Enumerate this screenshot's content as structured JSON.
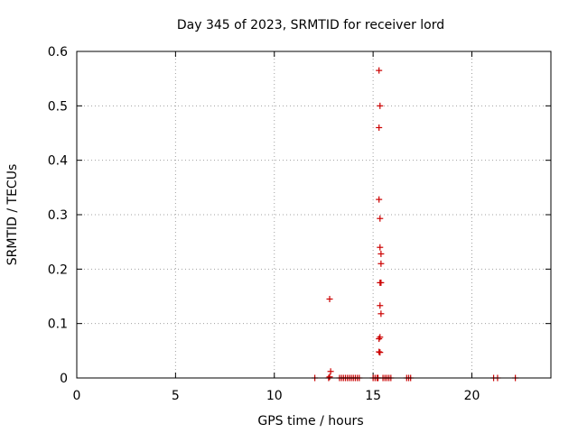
{
  "chart_data": {
    "type": "scatter",
    "title": "Day 345 of 2023, SRMTID for receiver lord",
    "xlabel": "GPS time / hours",
    "ylabel": "SRMTID / TECUs",
    "xlim": [
      0,
      24
    ],
    "ylim": [
      0,
      0.6
    ],
    "xticks": [
      0,
      5,
      10,
      15,
      20
    ],
    "xtick_labels": [
      "0",
      "5",
      "10",
      "15",
      "20"
    ],
    "yticks": [
      0,
      0.1,
      0.2,
      0.3,
      0.4,
      0.5,
      0.6
    ],
    "ytick_labels": [
      "0",
      "0.1",
      "0.2",
      "0.3",
      "0.4",
      "0.5",
      "0.6"
    ],
    "grid": true,
    "marker": "+",
    "color": "#cc0000",
    "series": [
      {
        "x": [
          12.05,
          12.75,
          12.8,
          12.85,
          12.8,
          13.3,
          13.4,
          13.5,
          13.6,
          13.7,
          13.8,
          13.9,
          14.0,
          14.1,
          14.2,
          14.3,
          15.0,
          15.1,
          15.2,
          15.25,
          15.3,
          15.35,
          15.3,
          15.3,
          15.35,
          15.35,
          15.4,
          15.4,
          15.35,
          15.4,
          15.35,
          15.4,
          15.35,
          15.3,
          15.3,
          15.35,
          15.5,
          15.6,
          15.7,
          15.8,
          15.9,
          16.7,
          16.8,
          16.9,
          21.1,
          21.3,
          22.2
        ],
        "y": [
          0.0,
          0.0,
          0.145,
          0.012,
          0.002,
          0.0,
          0.0,
          0.0,
          0.0,
          0.0,
          0.0,
          0.0,
          0.0,
          0.0,
          0.0,
          0.0,
          0.0,
          0.0,
          0.0,
          0.0,
          0.565,
          0.5,
          0.46,
          0.328,
          0.293,
          0.24,
          0.228,
          0.21,
          0.175,
          0.175,
          0.133,
          0.118,
          0.075,
          0.072,
          0.048,
          0.047,
          0.0,
          0.0,
          0.0,
          0.0,
          0.0,
          0.0,
          0.0,
          0.0,
          0.0,
          0.0,
          0.0
        ]
      }
    ]
  }
}
